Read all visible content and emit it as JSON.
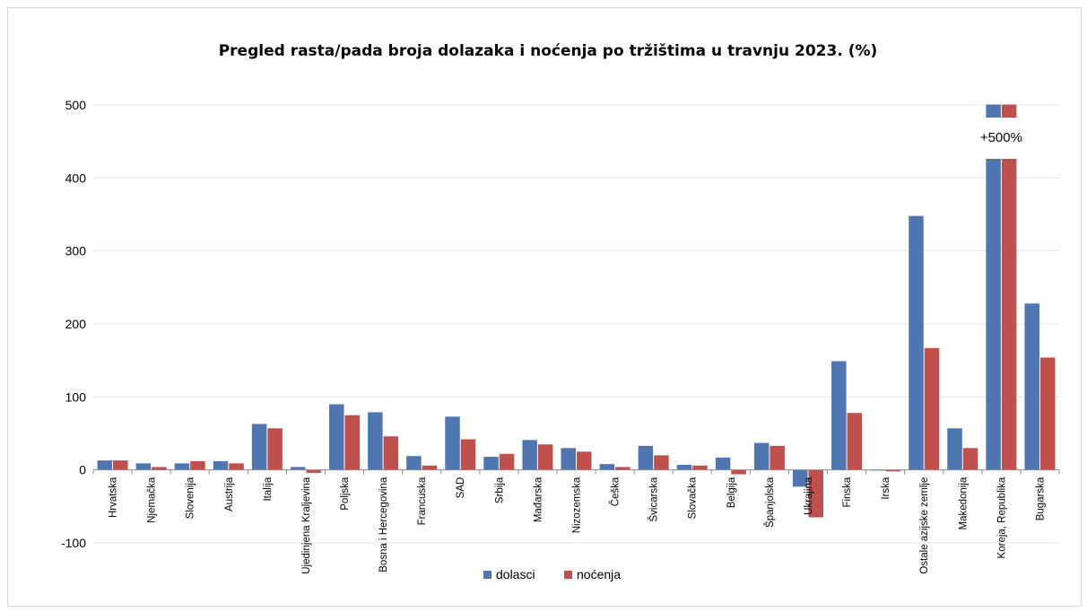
{
  "chart_data": {
    "type": "bar",
    "title": "Pregled rasta/pada broja dolazaka i noćenja po tržištima u travnju 2023. (%)",
    "xlabel": "",
    "ylabel": "",
    "ylim": [
      -100,
      500
    ],
    "yticks": [
      500,
      400,
      300,
      200,
      100,
      0,
      -100
    ],
    "categories": [
      "Hrvatska",
      "Njemačka",
      "Slovenija",
      "Austrija",
      "Italija",
      "Ujedinjena Kraljevina",
      "Poljska",
      "Bosna i Hercegovina",
      "Francuska",
      "SAD",
      "Srbija",
      "Mađarska",
      "Nizozemska",
      "Češka",
      "Švicarska",
      "Slovačka",
      "Belgija",
      "Španjolska",
      "Ukrajina",
      "Finska",
      "Irska",
      "Ostale azijske zemlje",
      "Makedonija",
      "Koreja, Republika",
      "Bugarska"
    ],
    "series": [
      {
        "name": "dolasci",
        "color": "#4f76b0",
        "values": [
          13,
          9,
          9,
          12,
          63,
          4,
          90,
          79,
          19,
          73,
          18,
          41,
          30,
          8,
          33,
          7,
          17,
          37,
          -23,
          149,
          0,
          348,
          57,
          550,
          228
        ]
      },
      {
        "name": "noćenja",
        "color": "#c0504d",
        "values": [
          13,
          4,
          12,
          9,
          57,
          -4,
          75,
          46,
          6,
          42,
          22,
          35,
          25,
          4,
          20,
          6,
          -6,
          33,
          -65,
          78,
          -2,
          167,
          30,
          550,
          154
        ]
      }
    ],
    "annotation": "+500%",
    "axis_break_category": "Koreja, Republika",
    "grid": true,
    "legend_position": "bottom"
  }
}
